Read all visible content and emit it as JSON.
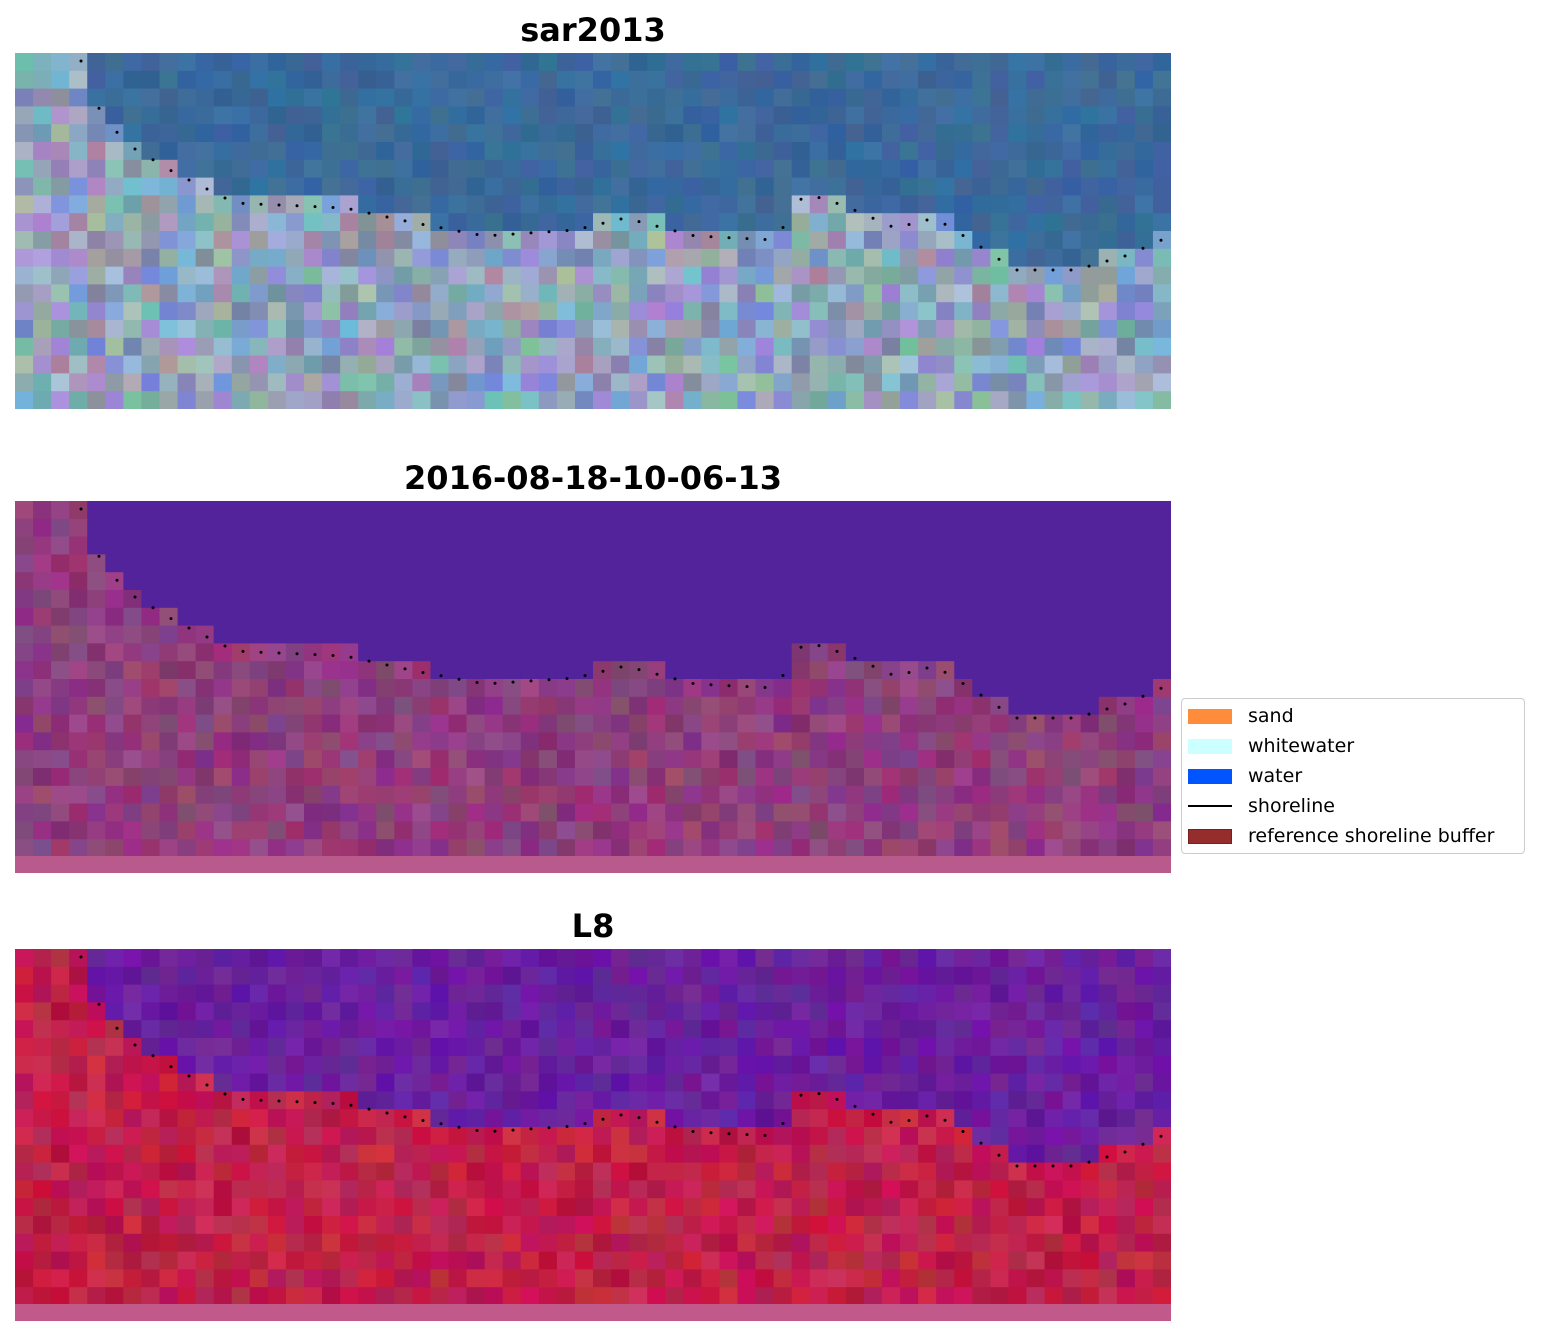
{
  "panels": [
    {
      "title": "sar2013",
      "style": "rgb"
    },
    {
      "title": "2016-08-18-10-06-13",
      "style": "classified"
    },
    {
      "title": "L8",
      "style": "index"
    }
  ],
  "legend": {
    "items": [
      {
        "label": "sand",
        "color": "#ff8c3a",
        "kind": "patch"
      },
      {
        "label": "whitewater",
        "color": "#ccffff",
        "kind": "patch"
      },
      {
        "label": "water",
        "color": "#0055ff",
        "kind": "patch"
      },
      {
        "label": "shoreline",
        "color": "#000000",
        "kind": "line"
      },
      {
        "label": "reference shoreline buffer",
        "color": "#962d2d",
        "edge": "#7a1f1f",
        "kind": "patch"
      }
    ]
  },
  "colors": {
    "classified_water": "#52239a",
    "classified_land": "#8f3d7c",
    "index_water": "#6a1f9e",
    "index_land": "#c0204a",
    "rgb_water": "#3a6a9b",
    "rgb_land": "#8fa2bb"
  }
}
